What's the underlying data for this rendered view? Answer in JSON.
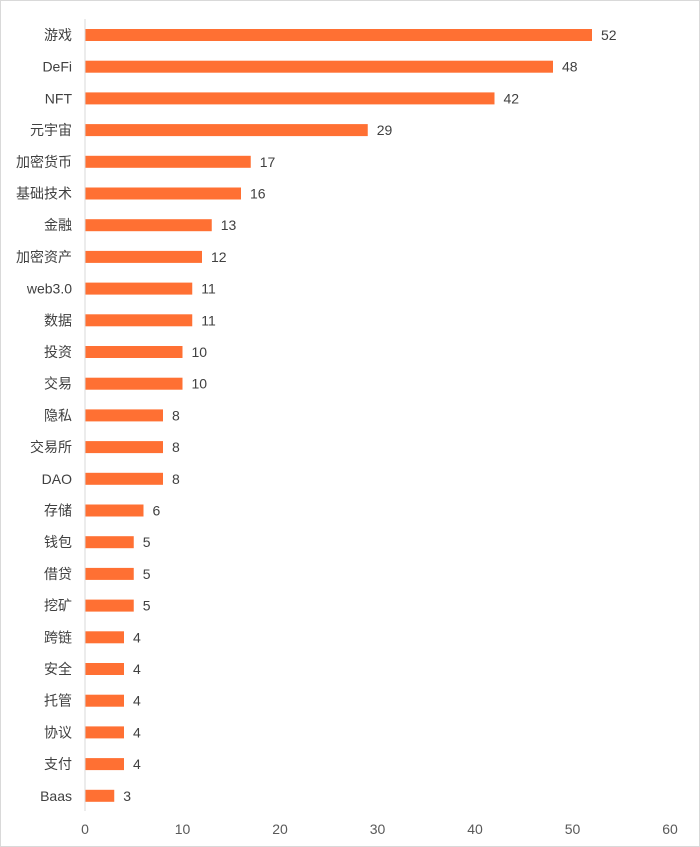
{
  "chart_data": {
    "type": "bar",
    "orientation": "horizontal",
    "title": "",
    "xlabel": "",
    "ylabel": "",
    "xlim": [
      0,
      60
    ],
    "xticks": [
      0,
      10,
      20,
      30,
      40,
      50,
      60
    ],
    "grid": false,
    "legend": "none",
    "bar_color": "#FF7033",
    "categories": [
      "游戏",
      "DeFi",
      "NFT",
      "元宇宙",
      "加密货币",
      "基础技术",
      "金融",
      "加密资产",
      "web3.0",
      "数据",
      "投资",
      "交易",
      "隐私",
      "交易所",
      "DAO",
      "存储",
      "钱包",
      "借贷",
      "挖矿",
      "跨链",
      "安全",
      "托管",
      "协议",
      "支付",
      "Baas"
    ],
    "values": [
      52,
      48,
      42,
      29,
      17,
      16,
      13,
      12,
      11,
      11,
      10,
      10,
      8,
      8,
      8,
      6,
      5,
      5,
      5,
      4,
      4,
      4,
      4,
      4,
      3
    ]
  }
}
